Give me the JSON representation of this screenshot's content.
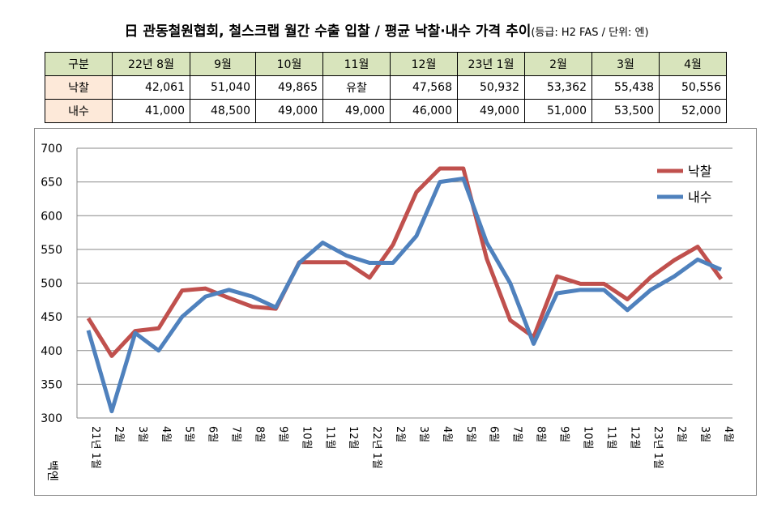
{
  "title": "日 관동철원협회, 철스크랩 월간 수출 입찰 / 평균 낙찰·내수 가격 추이",
  "subtitle": "(등급: H2 FAS / 단위: 엔)",
  "table": {
    "header": [
      "구분",
      "22년 8월",
      "9월",
      "10월",
      "11월",
      "12월",
      "23년 1월",
      "2월",
      "3월",
      "4월"
    ],
    "rows": [
      {
        "label": "낙찰",
        "values": [
          "42,061",
          "51,040",
          "49,865",
          "유찰",
          "47,568",
          "50,932",
          "53,362",
          "55,438",
          "50,556"
        ]
      },
      {
        "label": "내수",
        "values": [
          "41,000",
          "48,500",
          "49,000",
          "49,000",
          "46,000",
          "49,000",
          "51,000",
          "53,500",
          "52,000"
        ]
      }
    ]
  },
  "chart_data": {
    "type": "line",
    "ylabel": "백엔",
    "ylim": [
      300,
      700
    ],
    "yticks": [
      300,
      350,
      400,
      450,
      500,
      550,
      600,
      650,
      700
    ],
    "grid": true,
    "legend": "top-right",
    "categories": [
      "21년 1월",
      "2월",
      "3월",
      "4월",
      "5월",
      "6월",
      "7월",
      "8월",
      "9월",
      "10월",
      "11월",
      "12월",
      "22년 1월",
      "2월",
      "3월",
      "4월",
      "5월",
      "6월",
      "7월",
      "8월",
      "9월",
      "10월",
      "11월",
      "12월",
      "23년 1월",
      "2월",
      "3월",
      "4월"
    ],
    "series": [
      {
        "name": "낙찰",
        "color": "#c0504d",
        "values": [
          448,
          392,
          429,
          433,
          489,
          492,
          478,
          465,
          462,
          531,
          531,
          531,
          508,
          557,
          635,
          670,
          670,
          536,
          445,
          420,
          510,
          499,
          499,
          476,
          509,
          534,
          554,
          506
        ]
      },
      {
        "name": "내수",
        "color": "#4f81bd",
        "values": [
          430,
          310,
          426,
          400,
          450,
          480,
          490,
          480,
          464,
          530,
          560,
          541,
          530,
          530,
          570,
          650,
          655,
          560,
          500,
          410,
          485,
          490,
          490,
          460,
          490,
          510,
          535,
          520
        ]
      }
    ]
  }
}
